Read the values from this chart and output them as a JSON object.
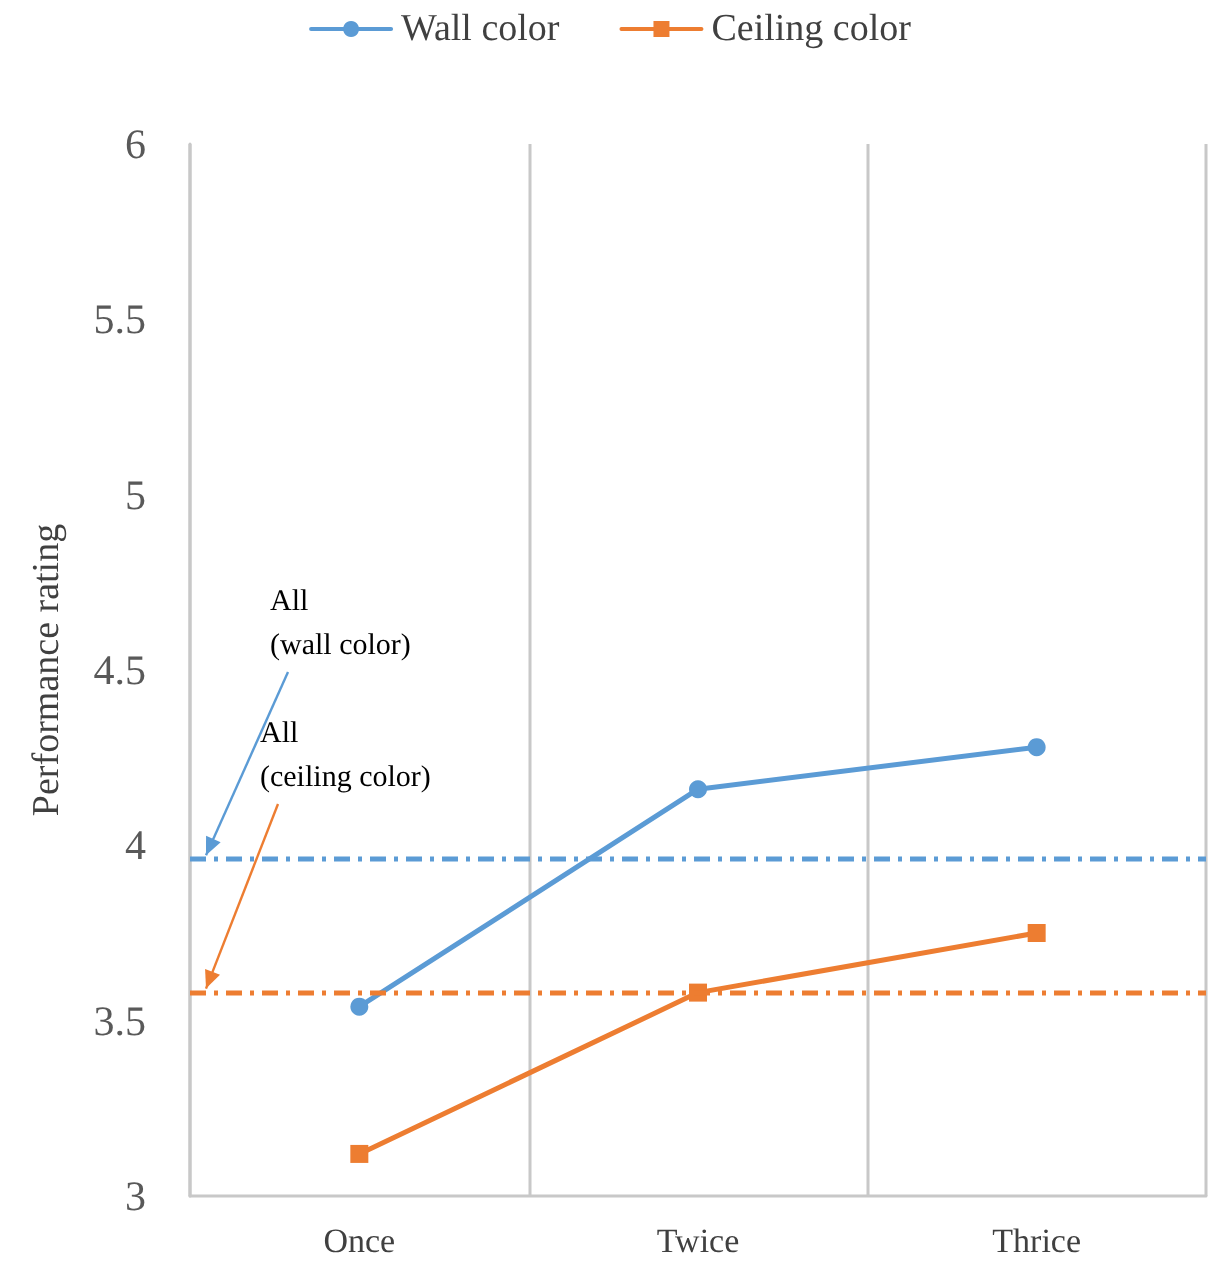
{
  "chart_data": {
    "type": "line",
    "ylabel": "Performance rating",
    "categories": [
      "Once",
      "Twice",
      "Thrice"
    ],
    "series": [
      {
        "name": "Wall color",
        "color": "#5b9bd5",
        "marker": "circle",
        "values": [
          3.54,
          4.16,
          4.28
        ]
      },
      {
        "name": "Ceiling color",
        "color": "#ed7d31",
        "marker": "square",
        "values": [
          3.12,
          3.58,
          3.75
        ]
      }
    ],
    "ylim": [
      3,
      6
    ],
    "yticks": [
      3,
      3.5,
      4,
      4.5,
      5,
      5.5,
      6
    ],
    "grid": "x",
    "legend": "top",
    "ref_lines": [
      {
        "axis": "y",
        "value": 3.96,
        "label": "All\n(wall color)",
        "color": "#5b9bd5",
        "line_style": "dashdot"
      },
      {
        "axis": "y",
        "value": 3.58,
        "label": "All\n(ceiling color)",
        "color": "#ed7d31",
        "line_style": "dashdot"
      }
    ]
  }
}
